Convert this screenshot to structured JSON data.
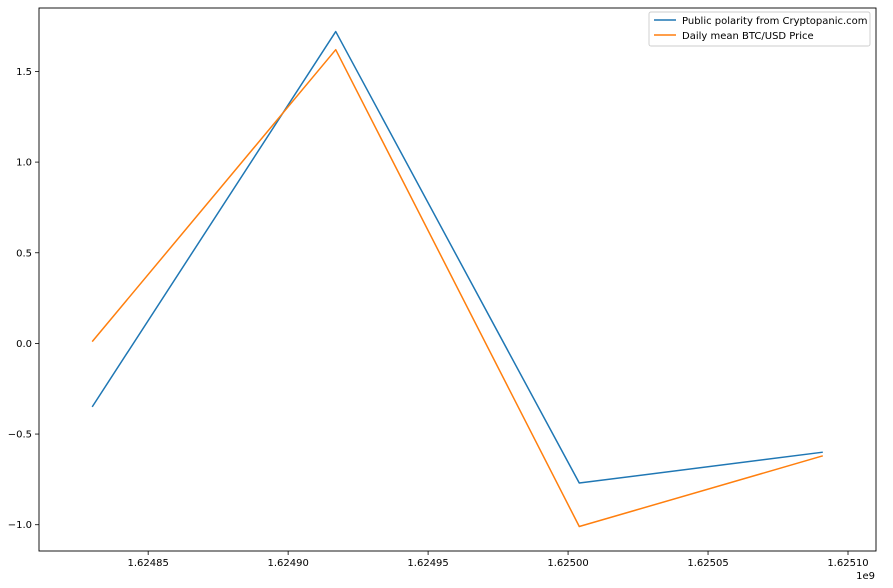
{
  "chart_data": {
    "type": "line",
    "x": [
      1624830000,
      1624917000,
      1625004000,
      1625091000
    ],
    "series": [
      {
        "name": "Public polarity from Cryptopanic.com",
        "color": "#1f77b4",
        "values": [
          -0.35,
          1.72,
          -0.77,
          -0.6
        ]
      },
      {
        "name": "Daily mean BTC/USD Price",
        "color": "#ff7f0e",
        "values": [
          0.01,
          1.62,
          -1.01,
          -0.62
        ]
      }
    ],
    "xlim": [
      1624811000,
      1625110000
    ],
    "ylim": [
      -1.145,
      1.85
    ],
    "x_ticks": [
      1624850000,
      1624900000,
      1624950000,
      1625000000,
      1625050000,
      1625100000
    ],
    "x_tick_labels": [
      "1.62485",
      "1.62490",
      "1.62495",
      "1.62500",
      "1.62505",
      "1.62510"
    ],
    "x_offset_label": "1e9",
    "y_ticks": [
      -1.0,
      -0.5,
      0.0,
      0.5,
      1.0,
      1.5
    ],
    "y_tick_labels": [
      "−1.0",
      "−0.5",
      "0.0",
      "0.5",
      "1.0",
      "1.5"
    ],
    "title": "",
    "xlabel": "",
    "ylabel": "",
    "grid": false,
    "legend_position": "upper right"
  }
}
